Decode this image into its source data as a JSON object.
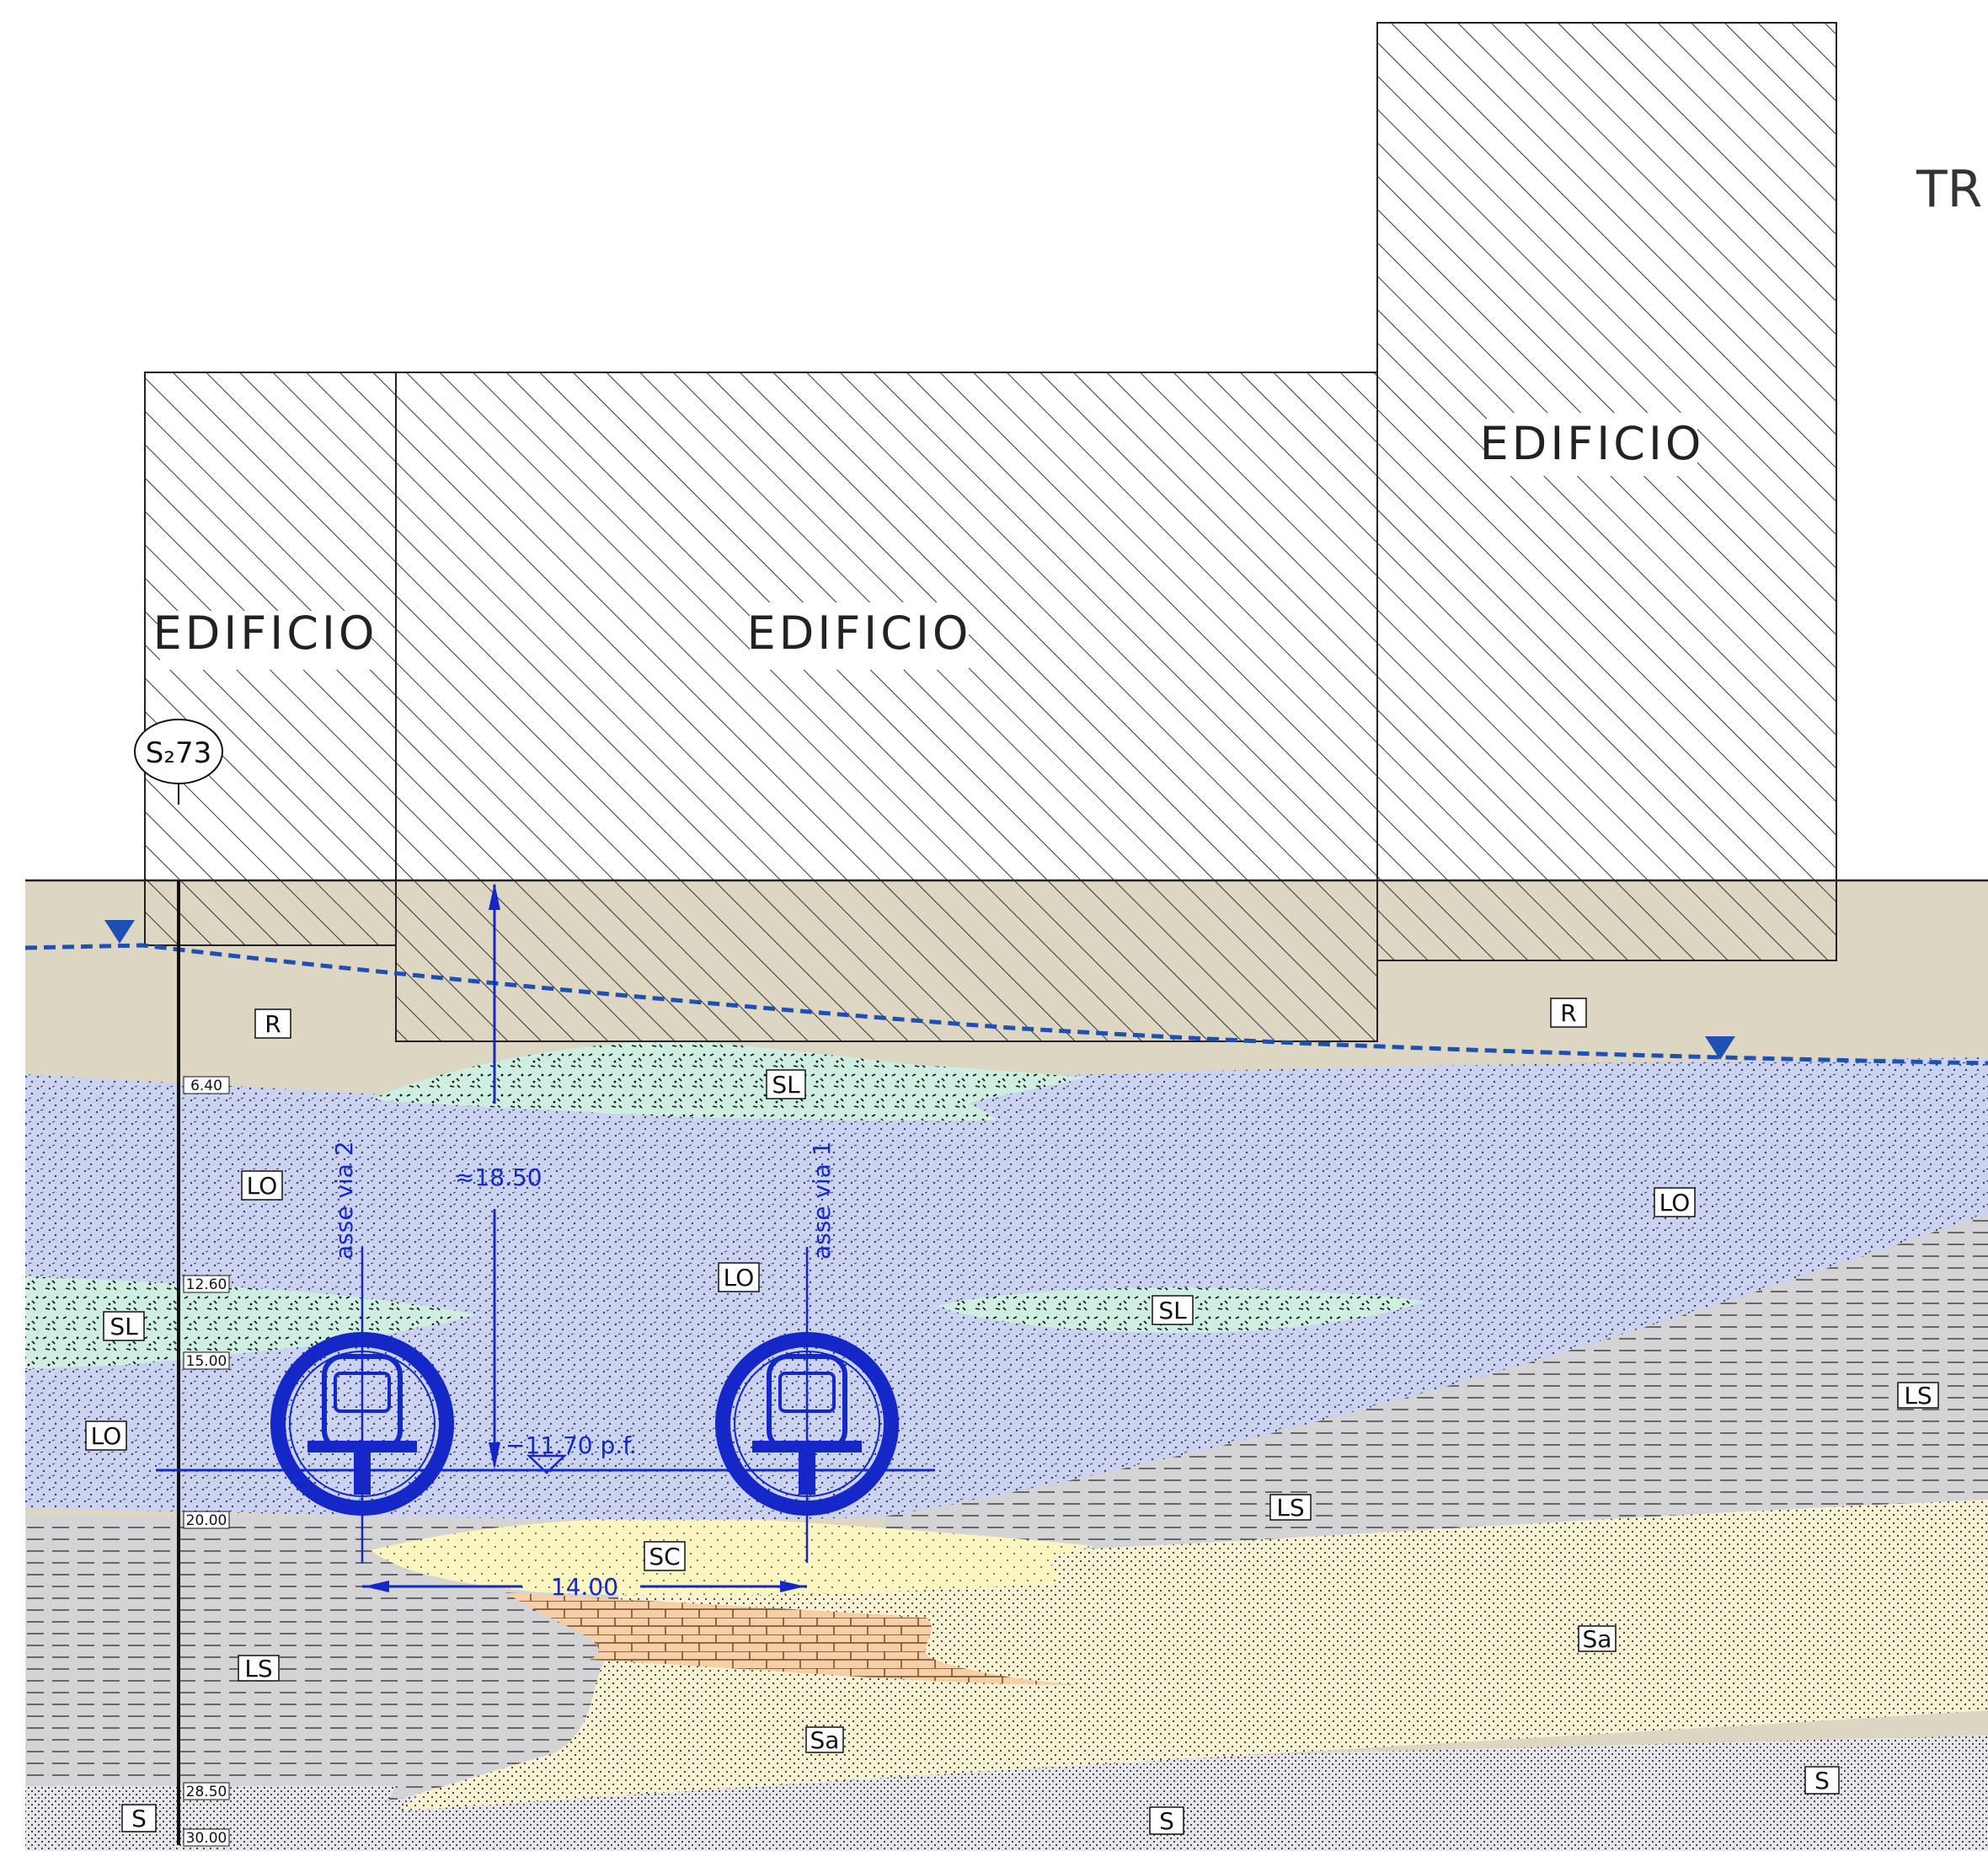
{
  "title_fragment": "TR",
  "buildings": [
    {
      "id": "left",
      "label": "EDIFICIO"
    },
    {
      "id": "center",
      "label": "EDIFICIO"
    },
    {
      "id": "right",
      "label": "EDIFICIO"
    }
  ],
  "borehole": {
    "id": "S₂73",
    "depths": [
      "6.40",
      "12.60",
      "15.00",
      "20.00",
      "28.50",
      "30.00"
    ]
  },
  "soil_layers": [
    {
      "code": "R",
      "color": "#ddd6c3"
    },
    {
      "code": "SL",
      "color": "#cdeee1"
    },
    {
      "code": "LO",
      "color": "#cbd3f0"
    },
    {
      "code": "LS",
      "color": "#d4d4d6"
    },
    {
      "code": "SC",
      "color": "#fbf6c0"
    },
    {
      "code": "Sa",
      "color": "#f8f2d4"
    },
    {
      "code": "S",
      "color": "#e6e6ec"
    }
  ],
  "layer_labels": {
    "r1": "R",
    "r2": "R",
    "sl1": "SL",
    "sl2": "SL",
    "sl3": "SL",
    "lo1": "LO",
    "lo2": "LO",
    "lo3": "LO",
    "lo4": "LO",
    "ls1": "LS",
    "ls2": "LS",
    "ls3": "LS",
    "sc1": "SC",
    "sa1": "Sa",
    "sa2": "Sa",
    "s1": "S",
    "s2": "S",
    "s3": "S"
  },
  "tunnels": {
    "axis_left": "asse  via  2",
    "axis_right": "asse  via  1",
    "depth_dimension": "≈18.50",
    "rail_level": "−11.70  p.f.",
    "spacing": "14.00",
    "color": "#1428c8"
  },
  "groundwater_color": "#1e50b4"
}
